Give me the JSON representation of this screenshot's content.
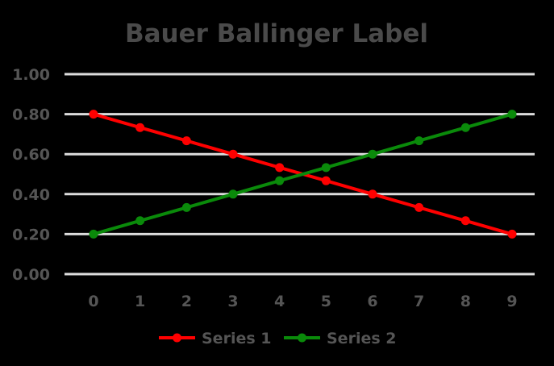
{
  "chart_data": {
    "type": "line",
    "title": "Bauer Ballinger Label",
    "xlabel": "",
    "ylabel": "",
    "categories": [
      "0",
      "1",
      "2",
      "3",
      "4",
      "5",
      "6",
      "7",
      "8",
      "9"
    ],
    "y_tick_labels": [
      "1.00",
      "0.80",
      "0.60",
      "0.40",
      "0.20",
      "0.00"
    ],
    "ylim": [
      0,
      1
    ],
    "grid": true,
    "legend_position": "bottom",
    "series": [
      {
        "name": "Series 1",
        "color": "#ff0000",
        "values": [
          0.8,
          0.733,
          0.667,
          0.6,
          0.533,
          0.467,
          0.4,
          0.333,
          0.267,
          0.2
        ]
      },
      {
        "name": "Series 2",
        "color": "#0a8a0a",
        "values": [
          0.2,
          0.267,
          0.333,
          0.4,
          0.467,
          0.533,
          0.6,
          0.667,
          0.733,
          0.8
        ]
      }
    ]
  }
}
